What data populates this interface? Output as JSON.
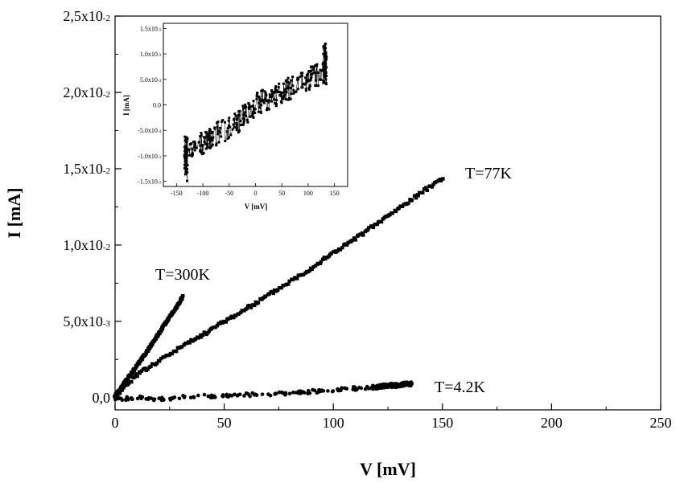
{
  "chart_data": [
    {
      "type": "scatter",
      "title": "",
      "xlabel": "V [mV]",
      "ylabel": "I [mA]",
      "xlim": [
        0,
        250
      ],
      "ylim": [
        -0.0008,
        0.025
      ],
      "x_ticks": [
        {
          "v": 0,
          "label": "0"
        },
        {
          "v": 50,
          "label": "50"
        },
        {
          "v": 100,
          "label": "100"
        },
        {
          "v": 150,
          "label": "150"
        },
        {
          "v": 200,
          "label": "200"
        },
        {
          "v": 250,
          "label": "250"
        }
      ],
      "y_ticks": [
        {
          "v": 0.0,
          "mant": "0,0",
          "exp": ""
        },
        {
          "v": 0.005,
          "mant": "5,0x10",
          "exp": "-3"
        },
        {
          "v": 0.01,
          "mant": "1,0x10",
          "exp": "-2"
        },
        {
          "v": 0.015,
          "mant": "1,5x10",
          "exp": "-2"
        },
        {
          "v": 0.02,
          "mant": "2,0x10",
          "exp": "-2"
        },
        {
          "v": 0.025,
          "mant": "2,5x10",
          "exp": "-2"
        }
      ],
      "series": [
        {
          "name": "T=300K",
          "marker": "square",
          "x": [
            0,
            3,
            6,
            10,
            15,
            20,
            25,
            28,
            31
          ],
          "y": [
            0.0001,
            0.0007,
            0.0013,
            0.0021,
            0.0031,
            0.0042,
            0.0053,
            0.0059,
            0.0066
          ]
        },
        {
          "name": "T=77K",
          "marker": "square",
          "x": [
            0,
            5,
            10,
            20,
            30,
            40,
            50,
            60,
            70,
            80,
            90,
            100,
            110,
            120,
            130,
            140,
            150
          ],
          "y": [
            0.0,
            0.0008,
            0.0015,
            0.0024,
            0.0033,
            0.0041,
            0.005,
            0.0058,
            0.0067,
            0.0076,
            0.0085,
            0.0095,
            0.0104,
            0.0114,
            0.0124,
            0.0134,
            0.0144
          ]
        },
        {
          "name": "T=4.2K",
          "marker": "circle",
          "x": [
            0,
            10,
            20,
            40,
            60,
            80,
            100,
            110,
            120,
            125,
            130,
            133,
            136
          ],
          "y": [
            -0.0001,
            0.0,
            -0.0001,
            0.0001,
            0.0002,
            0.0003,
            0.0005,
            0.0006,
            0.0007,
            0.0008,
            0.0008,
            0.0009,
            0.0009
          ]
        }
      ]
    },
    {
      "type": "scatter",
      "title": "",
      "xlabel": "V [mV]",
      "ylabel": "I [mA]",
      "xlim": [
        -175,
        175
      ],
      "ylim": [
        -0.0016,
        0.0016
      ],
      "x_ticks": [
        {
          "v": -150,
          "label": "-150"
        },
        {
          "v": -100,
          "label": "-100"
        },
        {
          "v": -50,
          "label": "-50"
        },
        {
          "v": 0,
          "label": "0"
        },
        {
          "v": 50,
          "label": "50"
        },
        {
          "v": 100,
          "label": "100"
        },
        {
          "v": 150,
          "label": "150"
        }
      ],
      "y_ticks": [
        {
          "v": 0.0015,
          "mant": "1.5x10",
          "exp": "-3"
        },
        {
          "v": 0.001,
          "mant": "1.0x10",
          "exp": "-3"
        },
        {
          "v": 0.0005,
          "mant": "5.0x10",
          "exp": "-4"
        },
        {
          "v": 0.0,
          "mant": "0.0",
          "exp": ""
        },
        {
          "v": -0.0005,
          "mant": "-5.0x10",
          "exp": "-4"
        },
        {
          "v": -0.001,
          "mant": "-1.0x10",
          "exp": "-3"
        },
        {
          "v": -0.0015,
          "mant": "-1.5x10",
          "exp": "-3"
        }
      ],
      "series": [
        {
          "name": "",
          "marker": "square",
          "x": [
            -135,
            -133,
            -130,
            -120,
            -100,
            -80,
            -60,
            -40,
            -20,
            0,
            20,
            40,
            60,
            80,
            100,
            120,
            130,
            135
          ],
          "y": [
            -0.0015,
            -0.0012,
            -0.0009,
            -0.0008,
            -0.00075,
            -0.0006,
            -0.0005,
            -0.0004,
            -0.0002,
            0.0,
            0.0001,
            0.0002,
            0.0003,
            0.0004,
            0.0005,
            0.0006,
            0.0008,
            0.0012
          ]
        }
      ]
    }
  ]
}
